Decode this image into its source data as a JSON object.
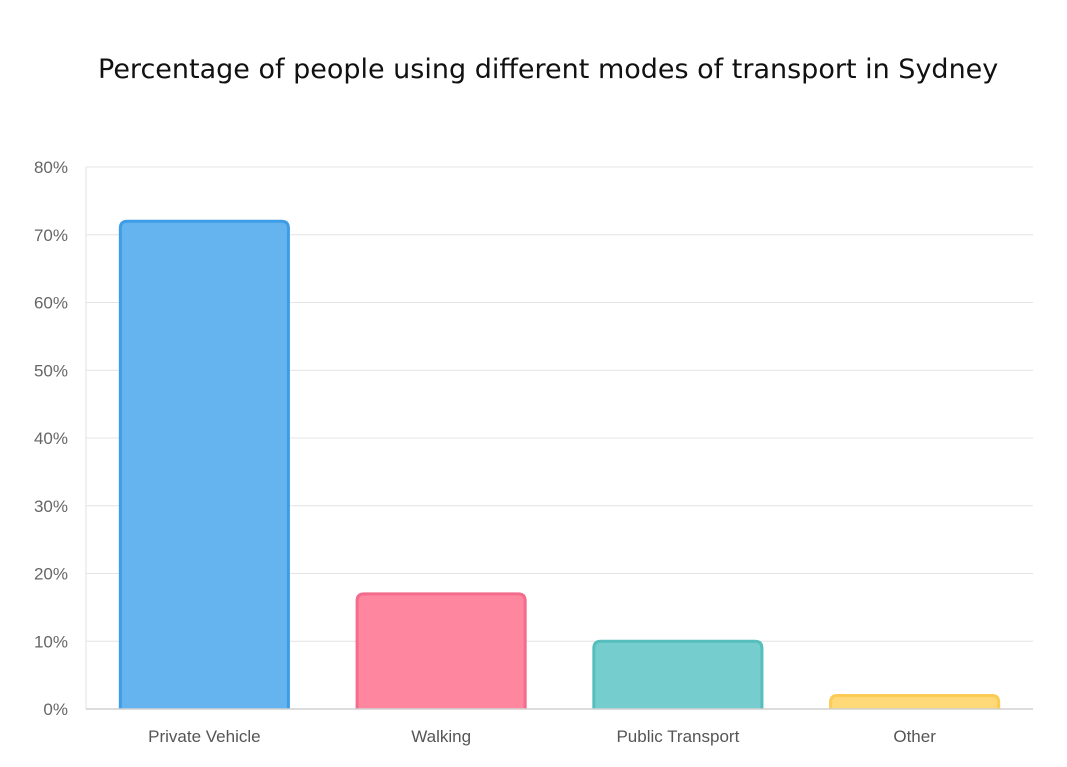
{
  "chart_data": {
    "type": "bar",
    "title": "Percentage of people using different modes of transport in Sydney",
    "categories": [
      "Private Vehicle",
      "Walking",
      "Public Transport",
      "Other"
    ],
    "values": [
      72,
      17,
      10,
      2
    ],
    "value_unit": "%",
    "ylim": [
      0,
      80
    ],
    "yticks": [
      "0%",
      "10%",
      "20%",
      "30%",
      "40%",
      "50%",
      "60%",
      "70%",
      "80%"
    ],
    "ytick_values": [
      0,
      10,
      20,
      30,
      40,
      50,
      60,
      70,
      80
    ],
    "grid": true,
    "legend": "none",
    "colors": {
      "fill": [
        "#66b4ef",
        "#ff869f",
        "#76cdcd",
        "#ffd978"
      ],
      "stroke": [
        "#3d9de6",
        "#f26d8b",
        "#56bfbd",
        "#fccb56"
      ]
    }
  }
}
